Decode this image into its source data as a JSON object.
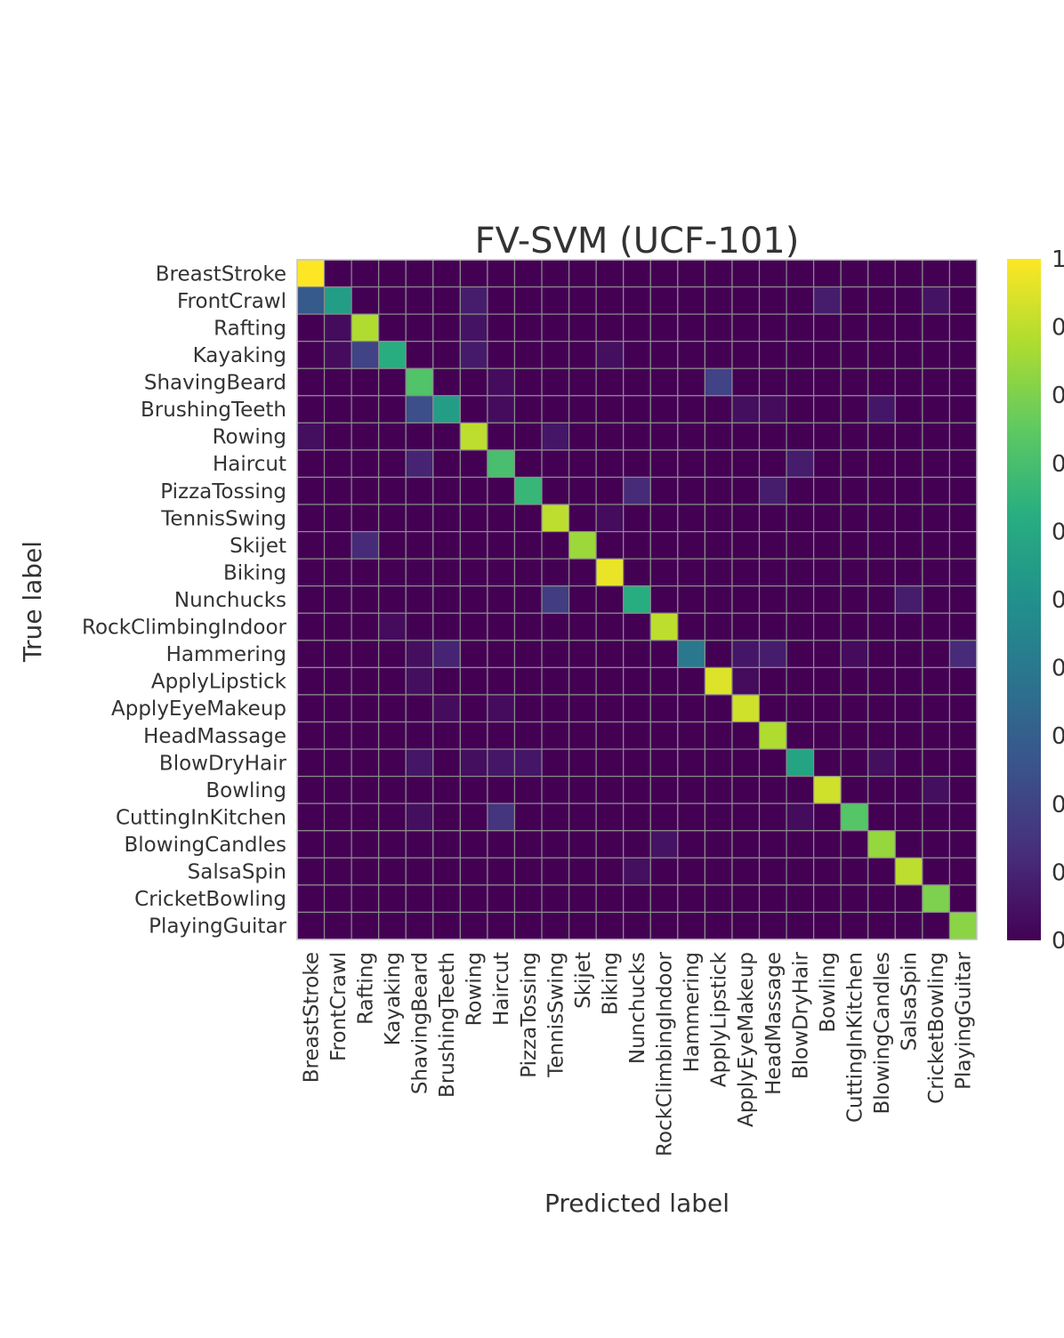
{
  "chart_data": {
    "type": "heatmap",
    "title": "FV-SVM (UCF-101)",
    "xlabel": "Predicted label",
    "ylabel": "True label",
    "labels": [
      "BreastStroke",
      "FrontCrawl",
      "Rafting",
      "Kayaking",
      "ShavingBeard",
      "BrushingTeeth",
      "Rowing",
      "Haircut",
      "PizzaTossing",
      "TennisSwing",
      "Skijet",
      "Biking",
      "Nunchucks",
      "RockClimbingIndoor",
      "Hammering",
      "ApplyLipstick",
      "ApplyEyeMakeup",
      "HeadMassage",
      "BlowDryHair",
      "Bowling",
      "CuttingInKitchen",
      "BlowingCandles",
      "SalsaSpin",
      "CricketBowling",
      "PlayingGuitar"
    ],
    "colorbar_ticks": [
      "1",
      "0",
      "0",
      "0",
      "0",
      "0",
      "0",
      "0",
      "0",
      "0",
      "0"
    ],
    "colormap": "viridis",
    "value_range": [
      0,
      1
    ],
    "matrix": [
      [
        1.0,
        0,
        0,
        0,
        0,
        0,
        0,
        0,
        0,
        0,
        0,
        0,
        0,
        0,
        0,
        0,
        0,
        0,
        0,
        0,
        0,
        0,
        0,
        0,
        0
      ],
      [
        0.28,
        0.55,
        0,
        0,
        0,
        0,
        0.08,
        0,
        0,
        0,
        0,
        0,
        0,
        0,
        0,
        0,
        0,
        0,
        0,
        0.08,
        0,
        0,
        0,
        0.05,
        0
      ],
      [
        0,
        0.03,
        0.88,
        0,
        0,
        0,
        0.05,
        0,
        0,
        0,
        0,
        0,
        0,
        0,
        0,
        0,
        0,
        0,
        0,
        0,
        0,
        0,
        0,
        0,
        0
      ],
      [
        0,
        0.03,
        0.2,
        0.62,
        0,
        0,
        0.07,
        0,
        0,
        0,
        0,
        0.04,
        0,
        0,
        0,
        0,
        0,
        0,
        0,
        0,
        0,
        0,
        0,
        0,
        0
      ],
      [
        0,
        0,
        0,
        0,
        0.72,
        0,
        0,
        0.03,
        0,
        0,
        0,
        0,
        0,
        0,
        0,
        0.2,
        0,
        0,
        0,
        0,
        0,
        0,
        0,
        0,
        0
      ],
      [
        0,
        0,
        0,
        0,
        0.24,
        0.55,
        0,
        0.03,
        0,
        0,
        0,
        0,
        0,
        0,
        0,
        0,
        0.04,
        0.03,
        0,
        0,
        0,
        0.06,
        0,
        0,
        0
      ],
      [
        0.04,
        0,
        0,
        0,
        0,
        0,
        0.9,
        0,
        0,
        0.06,
        0,
        0,
        0,
        0,
        0,
        0,
        0,
        0,
        0,
        0,
        0,
        0,
        0,
        0,
        0
      ],
      [
        0,
        0,
        0,
        0,
        0.1,
        0,
        0,
        0.7,
        0,
        0,
        0,
        0,
        0,
        0,
        0,
        0,
        0,
        0,
        0.08,
        0,
        0,
        0,
        0,
        0,
        0
      ],
      [
        0,
        0,
        0,
        0,
        0,
        0,
        0,
        0,
        0.66,
        0,
        0,
        0,
        0.12,
        0,
        0,
        0,
        0,
        0.08,
        0,
        0,
        0,
        0,
        0,
        0,
        0
      ],
      [
        0,
        0,
        0,
        0,
        0,
        0,
        0,
        0,
        0,
        0.9,
        0,
        0.03,
        0,
        0,
        0,
        0,
        0,
        0,
        0,
        0,
        0,
        0,
        0,
        0,
        0
      ],
      [
        0,
        0,
        0.12,
        0,
        0,
        0,
        0,
        0,
        0,
        0,
        0.85,
        0,
        0,
        0,
        0,
        0,
        0,
        0,
        0,
        0,
        0,
        0,
        0,
        0,
        0
      ],
      [
        0,
        0,
        0,
        0,
        0,
        0,
        0,
        0,
        0,
        0,
        0,
        0.97,
        0,
        0,
        0,
        0,
        0,
        0,
        0,
        0,
        0,
        0,
        0,
        0,
        0
      ],
      [
        0,
        0,
        0,
        0,
        0,
        0,
        0,
        0,
        0,
        0.18,
        0,
        0,
        0.62,
        0,
        0,
        0,
        0,
        0,
        0,
        0,
        0,
        0,
        0.08,
        0,
        0
      ],
      [
        0,
        0,
        0,
        0.03,
        0,
        0,
        0,
        0,
        0,
        0,
        0,
        0,
        0,
        0.9,
        0,
        0,
        0,
        0,
        0,
        0,
        0,
        0,
        0,
        0,
        0
      ],
      [
        0,
        0,
        0,
        0,
        0.04,
        0.1,
        0,
        0,
        0,
        0,
        0,
        0,
        0,
        0,
        0.4,
        0,
        0.06,
        0.08,
        0,
        0,
        0.03,
        0,
        0,
        0,
        0.12
      ],
      [
        0,
        0,
        0,
        0,
        0.04,
        0,
        0,
        0,
        0,
        0,
        0,
        0,
        0,
        0,
        0,
        0.95,
        0.03,
        0,
        0,
        0,
        0,
        0,
        0,
        0,
        0
      ],
      [
        0,
        0,
        0,
        0,
        0,
        0.03,
        0,
        0.03,
        0,
        0,
        0,
        0,
        0,
        0,
        0,
        0,
        0.93,
        0,
        0,
        0,
        0,
        0,
        0,
        0,
        0
      ],
      [
        0,
        0,
        0,
        0,
        0,
        0,
        0,
        0,
        0,
        0,
        0,
        0,
        0,
        0,
        0,
        0,
        0,
        0.88,
        0,
        0,
        0,
        0,
        0,
        0,
        0
      ],
      [
        0,
        0,
        0,
        0,
        0.06,
        0,
        0.04,
        0.06,
        0.06,
        0,
        0,
        0,
        0,
        0,
        0,
        0,
        0,
        0,
        0.58,
        0,
        0,
        0.04,
        0,
        0,
        0
      ],
      [
        0,
        0,
        0,
        0,
        0,
        0,
        0,
        0,
        0,
        0,
        0,
        0,
        0,
        0,
        0,
        0,
        0,
        0,
        0,
        0.93,
        0,
        0,
        0,
        0.04,
        0
      ],
      [
        0,
        0,
        0,
        0,
        0.04,
        0,
        0,
        0.15,
        0,
        0,
        0,
        0,
        0,
        0,
        0,
        0,
        0,
        0,
        0.03,
        0,
        0.73,
        0,
        0,
        0,
        0
      ],
      [
        0,
        0,
        0,
        0,
        0,
        0,
        0,
        0,
        0,
        0,
        0,
        0,
        0,
        0.05,
        0,
        0,
        0,
        0,
        0,
        0,
        0,
        0.84,
        0,
        0,
        0
      ],
      [
        0,
        0,
        0,
        0,
        0,
        0,
        0,
        0,
        0,
        0,
        0,
        0,
        0.04,
        0,
        0,
        0,
        0,
        0,
        0,
        0,
        0,
        0,
        0.9,
        0,
        0
      ],
      [
        0,
        0,
        0,
        0,
        0,
        0,
        0,
        0,
        0,
        0,
        0,
        0,
        0,
        0,
        0,
        0,
        0,
        0,
        0,
        0,
        0,
        0,
        0,
        0.8,
        0
      ],
      [
        0,
        0,
        0,
        0,
        0,
        0,
        0,
        0,
        0,
        0,
        0,
        0,
        0,
        0,
        0,
        0,
        0,
        0,
        0,
        0,
        0,
        0,
        0,
        0,
        0.82
      ]
    ]
  }
}
